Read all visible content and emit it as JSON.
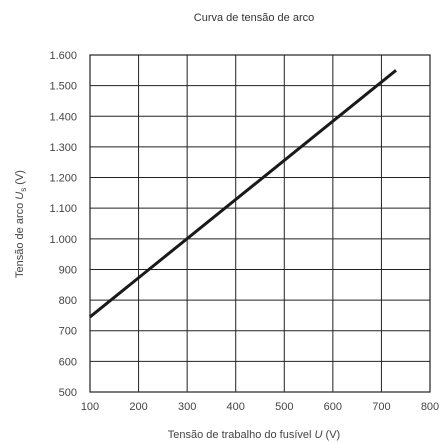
{
  "chart_data": {
    "type": "line",
    "title": "Curva de tensão de arco",
    "xlabel": {
      "prefix": "Tensão de trabalho do fusível ",
      "symbol": "U",
      "suffix": " (V)"
    },
    "ylabel": {
      "prefix": "Tensão de arco ",
      "symbol": "U",
      "subscript": "s",
      "suffix": " (V)"
    },
    "xlim": [
      100,
      800
    ],
    "ylim": [
      500,
      1600
    ],
    "x_ticks": [
      100,
      200,
      300,
      400,
      500,
      600,
      700,
      800
    ],
    "y_ticks": [
      500,
      600,
      700,
      800,
      900,
      1000,
      1100,
      1200,
      1300,
      1400,
      1500,
      1600
    ],
    "x_tick_labels": [
      "100",
      "200",
      "300",
      "400",
      "500",
      "600",
      "700",
      "800"
    ],
    "y_tick_labels": [
      "500",
      "600",
      "700",
      "800",
      "900",
      "1.000",
      "1.100",
      "1.200",
      "1.300",
      "1.400",
      "1.500",
      "1.600"
    ],
    "grid": true,
    "series": [
      {
        "x": [
          100,
          730
        ],
        "y": [
          745,
          1550
        ],
        "color": "#1a1a1a"
      }
    ]
  }
}
